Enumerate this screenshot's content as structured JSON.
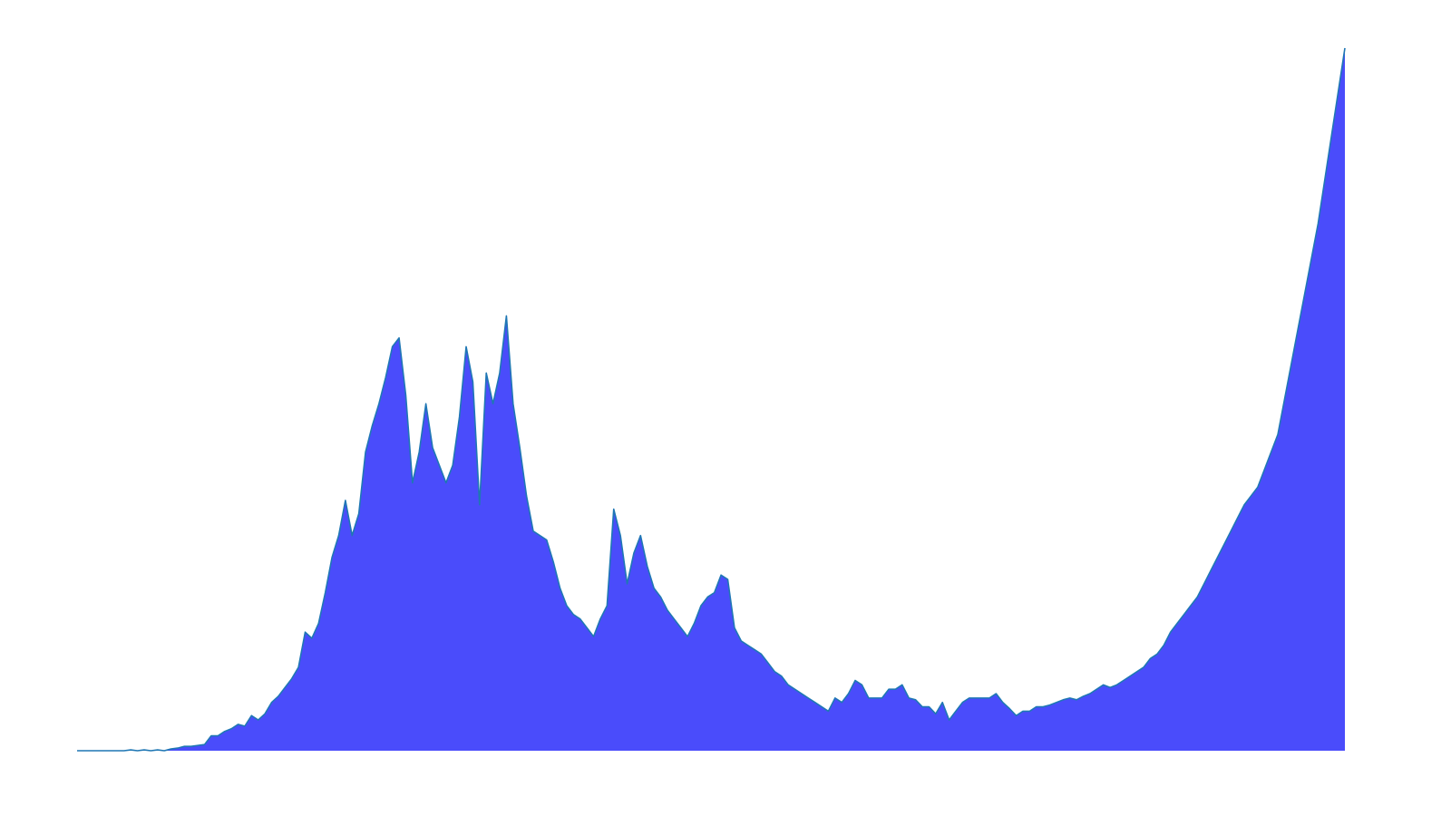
{
  "chart_data": {
    "type": "area",
    "title": "",
    "xlabel": "",
    "ylabel": "",
    "grid": false,
    "axes_visible": false,
    "legend": "none",
    "colors": {
      "fill": "#4a4cfb",
      "line": "#1f77b4",
      "background": "#ffffff"
    },
    "ylim": [
      0,
      800
    ],
    "series": [
      {
        "values": [
          0,
          0,
          0,
          0,
          0,
          0,
          0,
          0,
          1,
          0,
          1,
          0,
          1,
          0,
          2,
          3,
          5,
          5,
          6,
          7,
          17,
          17,
          22,
          25,
          30,
          28,
          40,
          35,
          42,
          55,
          62,
          72,
          82,
          95,
          135,
          128,
          145,
          180,
          220,
          245,
          285,
          245,
          270,
          340,
          370,
          395,
          425,
          460,
          470,
          405,
          305,
          340,
          395,
          345,
          325,
          305,
          325,
          380,
          460,
          420,
          280,
          430,
          395,
          430,
          495,
          395,
          345,
          290,
          250,
          245,
          240,
          215,
          185,
          165,
          155,
          150,
          140,
          130,
          150,
          165,
          275,
          245,
          190,
          225,
          245,
          210,
          185,
          175,
          160,
          150,
          140,
          130,
          145,
          165,
          175,
          180,
          200,
          195,
          140,
          125,
          120,
          115,
          110,
          100,
          90,
          85,
          75,
          70,
          65,
          60,
          55,
          50,
          45,
          60,
          55,
          65,
          80,
          75,
          60,
          60,
          60,
          70,
          70,
          75,
          60,
          58,
          50,
          50,
          42,
          55,
          35,
          45,
          55,
          60,
          60,
          60,
          60,
          65,
          55,
          48,
          40,
          45,
          45,
          50,
          50,
          52,
          55,
          58,
          60,
          58,
          62,
          65,
          70,
          75,
          72,
          75,
          80,
          85,
          90,
          95,
          105,
          110,
          120,
          135,
          145,
          155,
          165,
          175,
          190,
          205,
          220,
          235,
          250,
          265,
          280,
          290,
          300,
          320,
          340,
          360,
          400,
          440,
          480,
          520,
          560,
          600,
          650,
          700,
          750,
          800
        ]
      }
    ]
  }
}
